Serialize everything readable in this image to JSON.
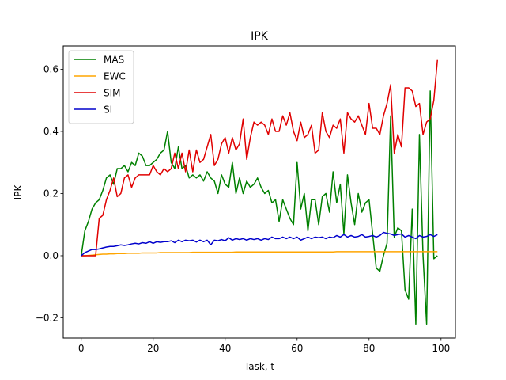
{
  "chart_data": {
    "type": "line",
    "title": "IPK",
    "xlabel": "Task, t",
    "ylabel": "IPK",
    "xlim": [
      -5,
      104
    ],
    "ylim": [
      -0.265,
      0.675
    ],
    "xticks": [
      0,
      20,
      40,
      60,
      80,
      100
    ],
    "yticks": [
      -0.2,
      0.0,
      0.2,
      0.4,
      0.6
    ],
    "xtick_labels": [
      "0",
      "20",
      "40",
      "60",
      "80",
      "100"
    ],
    "ytick_labels": [
      "−0.2",
      "0.0",
      "0.2",
      "0.4",
      "0.6"
    ],
    "grid": false,
    "legend_position": "upper-left",
    "x": [
      0,
      1,
      2,
      3,
      4,
      5,
      6,
      7,
      8,
      9,
      10,
      11,
      12,
      13,
      14,
      15,
      16,
      17,
      18,
      19,
      20,
      21,
      22,
      23,
      24,
      25,
      26,
      27,
      28,
      29,
      30,
      31,
      32,
      33,
      34,
      35,
      36,
      37,
      38,
      39,
      40,
      41,
      42,
      43,
      44,
      45,
      46,
      47,
      48,
      49,
      50,
      51,
      52,
      53,
      54,
      55,
      56,
      57,
      58,
      59,
      60,
      61,
      62,
      63,
      64,
      65,
      66,
      67,
      68,
      69,
      70,
      71,
      72,
      73,
      74,
      75,
      76,
      77,
      78,
      79,
      80,
      81,
      82,
      83,
      84,
      85,
      86,
      87,
      88,
      89,
      90,
      91,
      92,
      93,
      94,
      95,
      96,
      97,
      98,
      99
    ],
    "series": [
      {
        "name": "MAS",
        "color": "#008000",
        "values": [
          0.0,
          0.08,
          0.11,
          0.15,
          0.17,
          0.18,
          0.21,
          0.25,
          0.26,
          0.23,
          0.28,
          0.28,
          0.29,
          0.27,
          0.3,
          0.29,
          0.33,
          0.32,
          0.29,
          0.29,
          0.3,
          0.31,
          0.33,
          0.34,
          0.4,
          0.3,
          0.28,
          0.35,
          0.28,
          0.29,
          0.25,
          0.26,
          0.25,
          0.26,
          0.24,
          0.27,
          0.25,
          0.24,
          0.2,
          0.26,
          0.23,
          0.22,
          0.3,
          0.2,
          0.25,
          0.2,
          0.24,
          0.22,
          0.23,
          0.25,
          0.22,
          0.2,
          0.21,
          0.17,
          0.18,
          0.11,
          0.18,
          0.15,
          0.12,
          0.1,
          0.3,
          0.15,
          0.2,
          0.08,
          0.18,
          0.18,
          0.1,
          0.19,
          0.2,
          0.14,
          0.27,
          0.17,
          0.23,
          0.07,
          0.26,
          0.17,
          0.1,
          0.2,
          0.14,
          0.17,
          0.18,
          0.07,
          -0.04,
          -0.05,
          0.0,
          0.04,
          0.45,
          0.06,
          0.09,
          0.08,
          -0.11,
          -0.14,
          0.15,
          -0.22,
          0.39,
          0.0,
          -0.22,
          0.53,
          -0.01,
          0.0
        ]
      },
      {
        "name": "EWC",
        "color": "#FFA500",
        "values": [
          0.0,
          0.0,
          0.001,
          0.002,
          0.003,
          0.004,
          0.005,
          0.005,
          0.006,
          0.006,
          0.007,
          0.007,
          0.007,
          0.008,
          0.008,
          0.008,
          0.008,
          0.009,
          0.009,
          0.009,
          0.009,
          0.009,
          0.01,
          0.01,
          0.01,
          0.01,
          0.01,
          0.01,
          0.01,
          0.01,
          0.01,
          0.011,
          0.011,
          0.011,
          0.011,
          0.011,
          0.011,
          0.011,
          0.011,
          0.011,
          0.011,
          0.011,
          0.011,
          0.012,
          0.012,
          0.012,
          0.012,
          0.012,
          0.012,
          0.012,
          0.012,
          0.012,
          0.012,
          0.012,
          0.012,
          0.012,
          0.012,
          0.012,
          0.012,
          0.012,
          0.012,
          0.012,
          0.012,
          0.012,
          0.012,
          0.012,
          0.012,
          0.012,
          0.012,
          0.012,
          0.012,
          0.013,
          0.013,
          0.013,
          0.013,
          0.013,
          0.013,
          0.013,
          0.013,
          0.013,
          0.013,
          0.013,
          0.013,
          0.013,
          0.013,
          0.013,
          0.013,
          0.013,
          0.013,
          0.013,
          0.013,
          0.013,
          0.013,
          0.013,
          0.013,
          0.013,
          0.013,
          0.013,
          0.013,
          0.013
        ]
      },
      {
        "name": "SIM",
        "color": "#E00000",
        "values": [
          0.0,
          0.0,
          0.0,
          0.0,
          0.0,
          0.12,
          0.13,
          0.18,
          0.21,
          0.25,
          0.19,
          0.2,
          0.25,
          0.26,
          0.22,
          0.25,
          0.26,
          0.26,
          0.26,
          0.26,
          0.29,
          0.27,
          0.26,
          0.28,
          0.27,
          0.28,
          0.33,
          0.28,
          0.33,
          0.27,
          0.34,
          0.27,
          0.34,
          0.3,
          0.31,
          0.35,
          0.39,
          0.29,
          0.31,
          0.36,
          0.38,
          0.33,
          0.38,
          0.34,
          0.36,
          0.44,
          0.31,
          0.38,
          0.43,
          0.42,
          0.43,
          0.42,
          0.39,
          0.44,
          0.4,
          0.4,
          0.45,
          0.42,
          0.46,
          0.4,
          0.37,
          0.43,
          0.38,
          0.39,
          0.42,
          0.33,
          0.34,
          0.46,
          0.4,
          0.38,
          0.42,
          0.41,
          0.44,
          0.33,
          0.46,
          0.44,
          0.43,
          0.45,
          0.42,
          0.39,
          0.49,
          0.41,
          0.41,
          0.39,
          0.45,
          0.49,
          0.55,
          0.33,
          0.39,
          0.35,
          0.54,
          0.54,
          0.53,
          0.48,
          0.49,
          0.39,
          0.43,
          0.44,
          0.5,
          0.63
        ]
      },
      {
        "name": "SI",
        "color": "#0000CC",
        "values": [
          0.0,
          0.01,
          0.015,
          0.02,
          0.02,
          0.022,
          0.025,
          0.028,
          0.03,
          0.03,
          0.032,
          0.035,
          0.033,
          0.035,
          0.038,
          0.04,
          0.038,
          0.042,
          0.04,
          0.045,
          0.04,
          0.045,
          0.043,
          0.045,
          0.045,
          0.048,
          0.042,
          0.05,
          0.045,
          0.05,
          0.048,
          0.05,
          0.044,
          0.05,
          0.045,
          0.05,
          0.035,
          0.05,
          0.048,
          0.052,
          0.048,
          0.058,
          0.05,
          0.055,
          0.052,
          0.055,
          0.05,
          0.055,
          0.052,
          0.055,
          0.05,
          0.055,
          0.052,
          0.06,
          0.055,
          0.055,
          0.06,
          0.055,
          0.06,
          0.055,
          0.06,
          0.05,
          0.055,
          0.06,
          0.055,
          0.06,
          0.058,
          0.06,
          0.055,
          0.06,
          0.058,
          0.065,
          0.06,
          0.068,
          0.06,
          0.065,
          0.06,
          0.062,
          0.068,
          0.06,
          0.062,
          0.065,
          0.06,
          0.065,
          0.075,
          0.072,
          0.07,
          0.065,
          0.068,
          0.07,
          0.06,
          0.065,
          0.06,
          0.055,
          0.065,
          0.06,
          0.062,
          0.068,
          0.062,
          0.068
        ]
      }
    ]
  }
}
